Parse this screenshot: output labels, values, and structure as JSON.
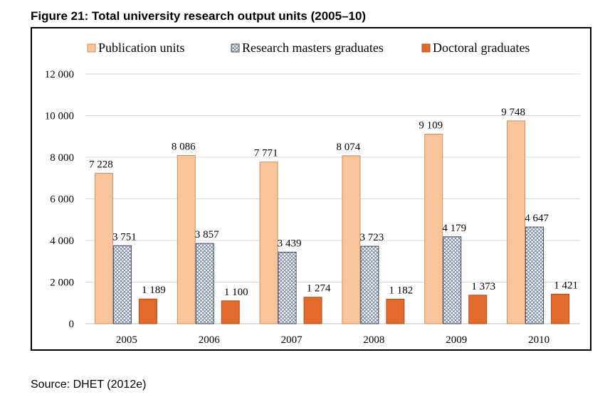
{
  "figure_title": "Figure 21: Total university research output units (2005–10)",
  "source": "Source: DHET (2012e)",
  "colors": {
    "publication": "#F8C59A",
    "publication_stroke": "#C89064",
    "masters_fill": "#FFFFFF",
    "masters_hatch": "#5B6F8F",
    "doctoral": "#E26A2C",
    "doctoral_stroke": "#B04E1A",
    "grid": "#D9D9D9"
  },
  "chart_data": {
    "type": "bar",
    "title": "",
    "xlabel": "",
    "ylabel": "",
    "categories": [
      "2005",
      "2006",
      "2007",
      "2008",
      "2009",
      "2010"
    ],
    "ylim": [
      0,
      12000
    ],
    "yticks": [
      0,
      2000,
      4000,
      6000,
      8000,
      10000,
      12000
    ],
    "ytick_labels": [
      "0",
      "2 000",
      "4 000",
      "6 000",
      "8 000",
      "10 000",
      "12 000"
    ],
    "grid": true,
    "legend_position": "top",
    "series": [
      {
        "name": "Publication units",
        "values": [
          7228,
          8086,
          7771,
          8074,
          9109,
          9748
        ],
        "labels": [
          "7 228",
          "8 086",
          "7 771",
          "8 074",
          "9 109",
          "9 748"
        ]
      },
      {
        "name": "Research masters graduates",
        "values": [
          3751,
          3857,
          3439,
          3723,
          4179,
          4647
        ],
        "labels": [
          "3 751",
          "3 857",
          "3 439",
          "3 723",
          "4 179",
          "4 647"
        ]
      },
      {
        "name": "Doctoral graduates",
        "values": [
          1189,
          1100,
          1274,
          1182,
          1373,
          1421
        ],
        "labels": [
          "1 189",
          "1 100",
          "1 274",
          "1 182",
          "1 373",
          "1 421"
        ]
      }
    ]
  }
}
